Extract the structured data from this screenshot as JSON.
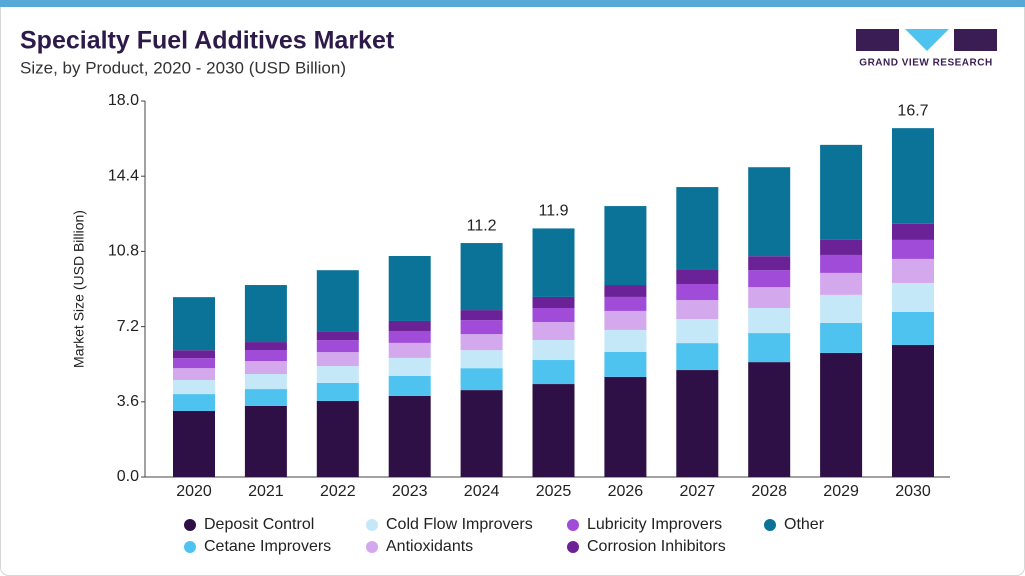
{
  "chart_data": {
    "type": "stacked_bar",
    "title": "Specialty Fuel Additives Market",
    "subtitle": "Size, by Product, 2020 - 2030 (USD Billion)",
    "logo_text": "GRAND VIEW RESEARCH",
    "y_label": "Market Size (USD Billion)",
    "categories": [
      "2020",
      "2021",
      "2022",
      "2023",
      "2024",
      "2025",
      "2026",
      "2027",
      "2028",
      "2029",
      "2030"
    ],
    "series": [
      {
        "name": "Deposit Control",
        "color": "#2e1046",
        "values": [
          3.16,
          3.4,
          3.64,
          3.88,
          4.16,
          4.45,
          4.79,
          5.12,
          5.5,
          5.94,
          6.32
        ]
      },
      {
        "name": "Cetane Improvers",
        "color": "#4fc3ef",
        "values": [
          0.81,
          0.81,
          0.86,
          0.96,
          1.05,
          1.15,
          1.2,
          1.29,
          1.39,
          1.44,
          1.58
        ]
      },
      {
        "name": "Cold Flow Improvers",
        "color": "#c4e8f8",
        "values": [
          0.67,
          0.72,
          0.81,
          0.86,
          0.86,
          0.96,
          1.05,
          1.15,
          1.2,
          1.34,
          1.39
        ]
      },
      {
        "name": "Antioxidants",
        "color": "#d3a8ec",
        "values": [
          0.57,
          0.62,
          0.67,
          0.72,
          0.77,
          0.86,
          0.91,
          0.91,
          1.0,
          1.05,
          1.15
        ]
      },
      {
        "name": "Lubricity Improvers",
        "color": "#a04cd9",
        "values": [
          0.48,
          0.53,
          0.57,
          0.57,
          0.67,
          0.67,
          0.67,
          0.77,
          0.81,
          0.86,
          0.91
        ]
      },
      {
        "name": "Corrosion Inhibitors",
        "color": "#6a2296",
        "values": [
          0.38,
          0.38,
          0.43,
          0.48,
          0.48,
          0.53,
          0.57,
          0.67,
          0.67,
          0.72,
          0.77
        ]
      },
      {
        "name": "Other",
        "color": "#0b7398",
        "values": [
          2.54,
          2.73,
          2.92,
          3.11,
          3.21,
          3.28,
          3.78,
          3.97,
          4.26,
          4.55,
          4.58
        ]
      }
    ],
    "total_labels": [
      null,
      null,
      null,
      null,
      11.2,
      11.9,
      null,
      null,
      null,
      null,
      16.7
    ],
    "ylim": [
      0,
      18
    ],
    "yticks": [
      {
        "value": 0,
        "label": "0.0"
      },
      3.6,
      7.2,
      10.8,
      14.4,
      {
        "value": 18,
        "label": "18.0"
      }
    ]
  }
}
